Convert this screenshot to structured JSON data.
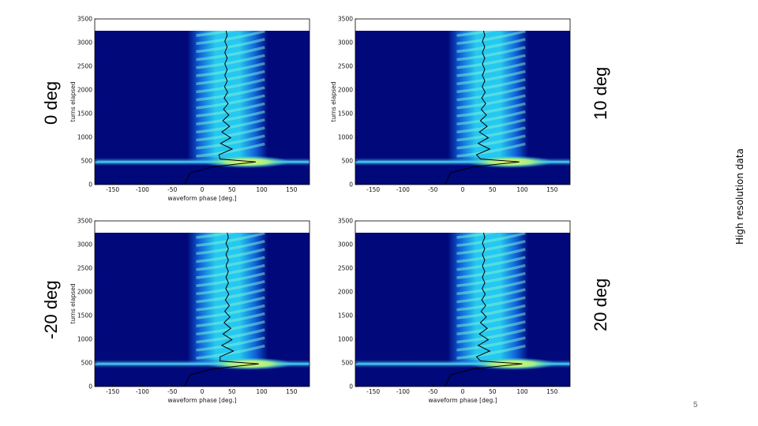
{
  "chart_data": [
    {
      "type": "heatmap",
      "title": "0 deg",
      "xlabel": "waveform phase [deg.]",
      "ylabel": "turns elapsed",
      "xlim": [
        -180,
        180
      ],
      "ylim": [
        0,
        3500
      ],
      "xticks": [
        -150,
        -100,
        -50,
        0,
        50,
        100,
        150
      ],
      "yticks": [
        0,
        500,
        1000,
        1500,
        2000,
        2500,
        3000,
        3500
      ],
      "data_max_turns": 3250,
      "injection_turn": 480,
      "centroid_final_phase": 40,
      "centroid_peak_phase": 90
    },
    {
      "type": "heatmap",
      "title": "10 deg",
      "xlabel": "",
      "ylabel": "turns elapsed",
      "xlim": [
        -180,
        180
      ],
      "ylim": [
        0,
        3500
      ],
      "xticks": [
        -150,
        -100,
        -50,
        0,
        50,
        100,
        150
      ],
      "yticks": [
        0,
        500,
        1000,
        1500,
        2000,
        2500,
        3000,
        3500
      ],
      "data_max_turns": 3250,
      "injection_turn": 480,
      "centroid_final_phase": 35,
      "centroid_peak_phase": 95
    },
    {
      "type": "heatmap",
      "title": "-20 deg",
      "xlabel": "waveform phase [deg.]",
      "ylabel": "turns elapsed",
      "xlim": [
        -180,
        180
      ],
      "ylim": [
        0,
        3500
      ],
      "xticks": [
        -150,
        -100,
        -50,
        0,
        50,
        100,
        150
      ],
      "yticks": [
        0,
        500,
        1000,
        1500,
        2000,
        2500,
        3000,
        3500
      ],
      "data_max_turns": 3250,
      "injection_turn": 480,
      "centroid_final_phase": 42,
      "centroid_peak_phase": 95
    },
    {
      "type": "heatmap",
      "title": "20 deg",
      "xlabel": "waveform phase [deg.]",
      "ylabel": "",
      "xlim": [
        -180,
        180
      ],
      "ylim": [
        0,
        3500
      ],
      "xticks": [
        -150,
        -100,
        -50,
        0,
        50,
        100,
        150
      ],
      "yticks": [
        0,
        500,
        1000,
        1500,
        2000,
        2500,
        3000,
        3500
      ],
      "data_max_turns": 3250,
      "injection_turn": 480,
      "centroid_final_phase": 35,
      "centroid_peak_phase": 100
    }
  ],
  "labels": {
    "p0": "0 deg",
    "p1": "10 deg",
    "p2": "-20 deg",
    "p3": "20 deg"
  },
  "side_note": "High resolution data",
  "page_number": "5",
  "colors": {
    "background_dark": "#00087a",
    "band_cyan": "#25c8f0",
    "peak_yellow": "#f4f06a",
    "centroid": "#000000"
  }
}
